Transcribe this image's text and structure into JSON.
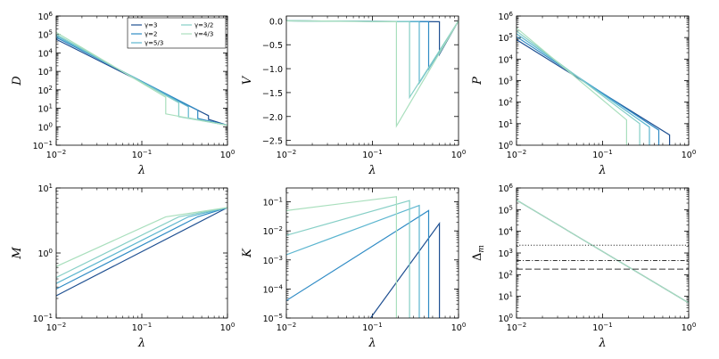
{
  "chart_data": [
    {
      "type": "line",
      "xscale": "log",
      "yscale": "log",
      "xlabel": "λ",
      "ylabel": "D",
      "xlim": [
        0.01,
        1
      ],
      "ylim": [
        0.1,
        1000000
      ],
      "xticks": [
        "10^-2",
        "10^-1",
        "10^0"
      ],
      "yticks": [
        "10^-1",
        "10^0",
        "10^1",
        "10^2",
        "10^3",
        "10^4",
        "10^5",
        "10^6"
      ],
      "legend": {
        "position": "top-right",
        "entries": [
          "γ=3",
          "γ=3/2",
          "γ=2",
          "γ=4/3",
          "γ=5/3"
        ]
      },
      "series": [
        {
          "name": "γ=3",
          "x": [
            0.01,
            0.6,
            0.6,
            1.0
          ],
          "y": [
            55000,
            4,
            2.5,
            1.2
          ]
        },
        {
          "name": "γ=2",
          "x": [
            0.01,
            0.45,
            0.45,
            1.0
          ],
          "y": [
            70000,
            8,
            2.8,
            1.2
          ]
        },
        {
          "name": "γ=5/3",
          "x": [
            0.01,
            0.35,
            0.35,
            1.0
          ],
          "y": [
            85000,
            12,
            3,
            1.2
          ]
        },
        {
          "name": "γ=3/2",
          "x": [
            0.01,
            0.27,
            0.27,
            1.0
          ],
          "y": [
            100000,
            20,
            3.5,
            1.2
          ]
        },
        {
          "name": "γ=4/3",
          "x": [
            0.01,
            0.19,
            0.19,
            1.0
          ],
          "y": [
            130000,
            40,
            5,
            1.2
          ]
        }
      ]
    },
    {
      "type": "line",
      "xscale": "log",
      "yscale": "linear",
      "xlabel": "λ",
      "ylabel": "V",
      "xlim": [
        0.01,
        1
      ],
      "ylim": [
        -2.6,
        0.1
      ],
      "xticks": [
        "10^-2",
        "10^-1",
        "10^0"
      ],
      "yticks": [
        "0.0",
        "−0.5",
        "−1.0",
        "−1.5",
        "−2.0",
        "−2.5"
      ],
      "series": [
        {
          "name": "γ=3",
          "x": [
            0.01,
            0.6,
            0.6,
            1.0
          ],
          "y": [
            0,
            -0.02,
            -0.7,
            0
          ]
        },
        {
          "name": "γ=2",
          "x": [
            0.01,
            0.45,
            0.45,
            1.0
          ],
          "y": [
            0,
            -0.02,
            -1.0,
            0
          ]
        },
        {
          "name": "γ=5/3",
          "x": [
            0.01,
            0.35,
            0.35,
            1.0
          ],
          "y": [
            0,
            -0.02,
            -1.3,
            0
          ]
        },
        {
          "name": "γ=3/2",
          "x": [
            0.01,
            0.27,
            0.27,
            1.0
          ],
          "y": [
            0,
            -0.02,
            -1.6,
            0
          ]
        },
        {
          "name": "γ=4/3",
          "x": [
            0.01,
            0.19,
            0.19,
            1.0
          ],
          "y": [
            0,
            -0.02,
            -2.2,
            0
          ]
        }
      ]
    },
    {
      "type": "line",
      "xscale": "log",
      "yscale": "log",
      "xlabel": "λ",
      "ylabel": "P",
      "xlim": [
        0.01,
        1
      ],
      "ylim": [
        1,
        1000000
      ],
      "xticks": [
        "10^-2",
        "10^-1",
        "10^0"
      ],
      "yticks": [
        "10^0",
        "10^1",
        "10^2",
        "10^3",
        "10^4",
        "10^5",
        "10^6"
      ],
      "series": [
        {
          "name": "γ=3",
          "x": [
            0.01,
            0.6,
            0.6
          ],
          "y": [
            80000,
            3,
            1
          ]
        },
        {
          "name": "γ=2",
          "x": [
            0.01,
            0.45,
            0.45
          ],
          "y": [
            110000,
            5,
            1
          ]
        },
        {
          "name": "γ=5/3",
          "x": [
            0.01,
            0.35,
            0.35
          ],
          "y": [
            150000,
            7,
            1
          ]
        },
        {
          "name": "γ=3/2",
          "x": [
            0.01,
            0.27,
            0.27
          ],
          "y": [
            200000,
            10,
            1
          ]
        },
        {
          "name": "γ=4/3",
          "x": [
            0.01,
            0.19,
            0.19
          ],
          "y": [
            280000,
            15,
            1
          ]
        }
      ]
    },
    {
      "type": "line",
      "xscale": "log",
      "yscale": "log",
      "xlabel": "λ",
      "ylabel": "M",
      "xlim": [
        0.01,
        1
      ],
      "ylim": [
        0.1,
        10
      ],
      "xticks": [
        "10^-2",
        "10^-1",
        "10^0"
      ],
      "yticks": [
        "10^-1",
        "10^0",
        "10^1"
      ],
      "series": [
        {
          "name": "γ=3",
          "x": [
            0.01,
            1.0
          ],
          "y": [
            0.22,
            5
          ]
        },
        {
          "name": "γ=2",
          "x": [
            0.01,
            0.45,
            1.0
          ],
          "y": [
            0.28,
            3.6,
            5
          ]
        },
        {
          "name": "γ=5/3",
          "x": [
            0.01,
            0.35,
            1.0
          ],
          "y": [
            0.34,
            3.6,
            5
          ]
        },
        {
          "name": "γ=3/2",
          "x": [
            0.01,
            0.27,
            1.0
          ],
          "y": [
            0.42,
            3.6,
            5
          ]
        },
        {
          "name": "γ=4/3",
          "x": [
            0.01,
            0.19,
            1.0
          ],
          "y": [
            0.62,
            3.6,
            5
          ]
        }
      ]
    },
    {
      "type": "line",
      "xscale": "log",
      "yscale": "log",
      "xlabel": "λ",
      "ylabel": "K",
      "xlim": [
        0.01,
        1
      ],
      "ylim": [
        1e-05,
        0.3
      ],
      "xticks": [
        "10^-2",
        "10^-1",
        "10^0"
      ],
      "yticks": [
        "10^-5",
        "10^-4",
        "10^-3",
        "10^-2",
        "10^-1"
      ],
      "series": [
        {
          "name": "γ=3",
          "x": [
            0.095,
            0.6,
            0.6
          ],
          "y": [
            1e-05,
            0.018,
            1e-05
          ]
        },
        {
          "name": "γ=2",
          "x": [
            0.01,
            0.45,
            0.45
          ],
          "y": [
            4e-05,
            0.05,
            1e-05
          ]
        },
        {
          "name": "γ=5/3",
          "x": [
            0.01,
            0.35,
            0.35
          ],
          "y": [
            0.0015,
            0.075,
            1e-05
          ]
        },
        {
          "name": "γ=3/2",
          "x": [
            0.01,
            0.27,
            0.27
          ],
          "y": [
            0.007,
            0.11,
            1e-05
          ]
        },
        {
          "name": "γ=4/3",
          "x": [
            0.01,
            0.19,
            0.19
          ],
          "y": [
            0.05,
            0.15,
            1e-05
          ]
        }
      ]
    },
    {
      "type": "line",
      "xscale": "log",
      "yscale": "log",
      "xlabel": "λ",
      "ylabel": "Δm",
      "xlim": [
        0.01,
        1
      ],
      "ylim": [
        1,
        1000000
      ],
      "xticks": [
        "10^-2",
        "10^-1",
        "10^0"
      ],
      "yticks": [
        "10^0",
        "10^1",
        "10^2",
        "10^3",
        "10^4",
        "10^5",
        "10^6"
      ],
      "series": [
        {
          "name": "γ=3",
          "x": [
            0.01,
            1.0
          ],
          "y": [
            280000,
            5
          ]
        },
        {
          "name": "γ=4/3",
          "x": [
            0.01,
            1.0
          ],
          "y": [
            280000,
            5
          ]
        }
      ],
      "hlines": [
        {
          "y": 2300,
          "style": "dotted"
        },
        {
          "y": 450,
          "style": "dashdot"
        },
        {
          "y": 180,
          "style": "dashed"
        }
      ]
    }
  ],
  "colors": {
    "γ=3": "#1e4f91",
    "γ=2": "#2f8bc5",
    "γ=5/3": "#5bb5cf",
    "γ=3/2": "#86cfc6",
    "γ=4/3": "#a9dfbd",
    "reference_lines": "#333333"
  }
}
